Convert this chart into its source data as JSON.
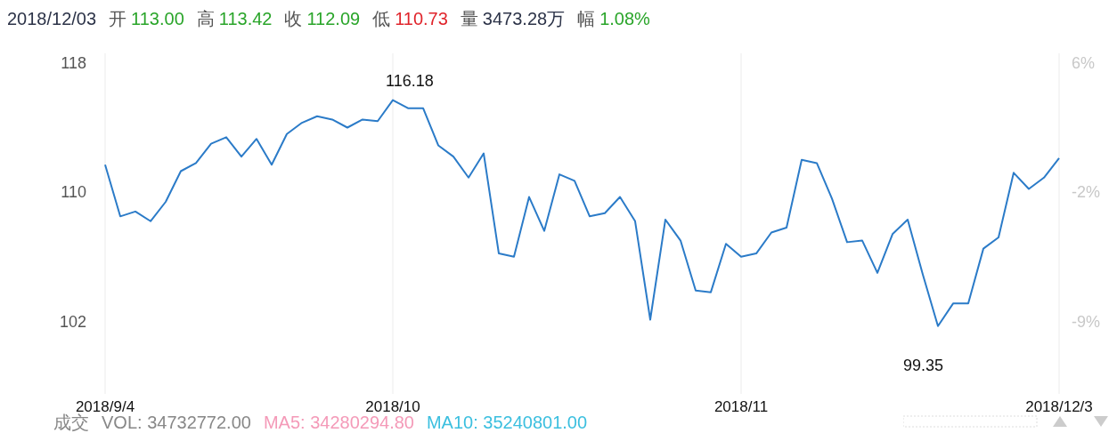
{
  "chart_data": {
    "type": "line",
    "title": "2018/12/03 开 113.00 高 113.42 收 112.09 低 110.73 量 3473.28万 幅 1.08%",
    "categories": [
      "2018/9/4",
      null,
      null,
      null,
      null,
      null,
      null,
      null,
      null,
      null,
      null,
      null,
      null,
      null,
      null,
      null,
      null,
      null,
      null,
      "2018/10",
      null,
      null,
      null,
      null,
      null,
      null,
      null,
      null,
      null,
      null,
      null,
      null,
      null,
      null,
      null,
      null,
      null,
      null,
      null,
      null,
      null,
      null,
      "2018/11",
      null,
      null,
      null,
      null,
      null,
      null,
      null,
      null,
      null,
      null,
      null,
      null,
      null,
      null,
      null,
      null,
      null,
      null,
      null,
      null,
      "2018/12/3"
    ],
    "series": [
      {
        "color": "#2b7bc8",
        "values": [
          111.7,
          108.5,
          108.8,
          108.2,
          109.4,
          111.3,
          111.8,
          113.0,
          113.4,
          112.2,
          113.3,
          111.7,
          113.6,
          114.3,
          114.7,
          114.5,
          114.0,
          114.5,
          114.4,
          115.7,
          115.2,
          115.2,
          112.9,
          112.2,
          110.9,
          112.4,
          106.2,
          106.0,
          109.7,
          107.6,
          111.1,
          110.7,
          108.5,
          108.7,
          109.7,
          108.2,
          102.1,
          108.3,
          107.0,
          103.9,
          103.8,
          106.8,
          106.0,
          106.2,
          107.5,
          107.8,
          112.0,
          111.8,
          109.6,
          106.9,
          107.0,
          105.0,
          107.4,
          108.3,
          104.9,
          101.7,
          103.1,
          103.1,
          106.5,
          107.2,
          111.2,
          110.2,
          110.9,
          112.1
        ]
      }
    ],
    "ylim": [
      97.5,
      118.6
    ],
    "yticks": [
      118,
      110,
      102
    ],
    "y2lim": [
      -13.21875,
      6.5625
    ],
    "y2ticks": [
      {
        "value": 6,
        "label": "6%"
      },
      {
        "value": -1.5,
        "label": "-2%"
      },
      {
        "value": -9,
        "label": "-9%"
      }
    ],
    "grid": true,
    "annotations": [
      "116.18",
      "99.35",
      "成交",
      "VOL: 34732772.00",
      "MA5: 34280294.80",
      "MA10: 35240801.00"
    ]
  }
}
